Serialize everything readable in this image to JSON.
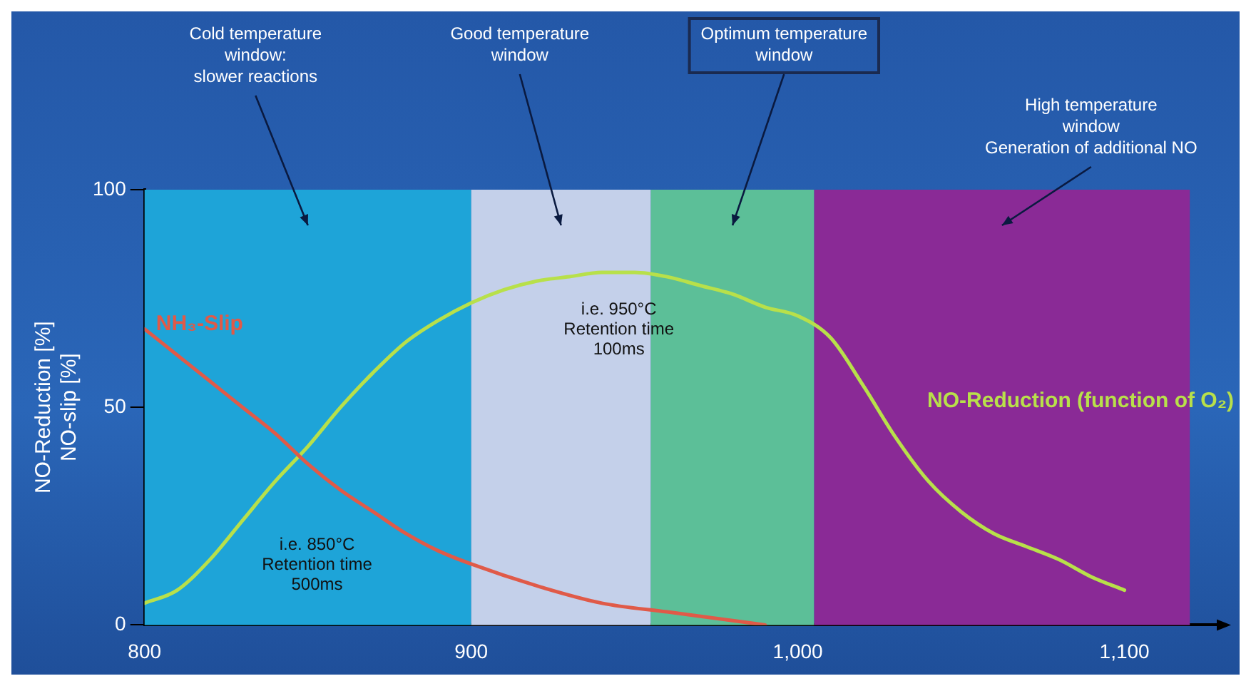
{
  "chart_data": {
    "type": "line",
    "ylabel": "NO-Reduction [%]\nNO-slip [%]",
    "xlim": [
      800,
      1130
    ],
    "xticks": [
      800,
      900,
      {
        "value": 1000,
        "label": "1,000"
      },
      {
        "value": 1100,
        "label": "1,100"
      }
    ],
    "ylim": [
      0,
      100
    ],
    "yticks": [
      0,
      50,
      100
    ],
    "grid": false,
    "legend": false,
    "marker": "none",
    "line_style": "solid",
    "series": [
      {
        "name": "NH₃-Slip",
        "color": "#e05a48",
        "x": [
          800,
          810,
          820,
          830,
          840,
          850,
          860,
          870,
          880,
          890,
          900,
          920,
          940,
          960,
          980,
          990
        ],
        "values": [
          68,
          62,
          56,
          50,
          44,
          37,
          31,
          26,
          21,
          17,
          14,
          9,
          5,
          3,
          1,
          0
        ]
      },
      {
        "name": "NO-Reduction (function of O₂)",
        "color": "#b8e04a",
        "x": [
          800,
          810,
          820,
          830,
          840,
          850,
          860,
          870,
          880,
          890,
          900,
          910,
          920,
          930,
          940,
          950,
          960,
          970,
          980,
          990,
          1000,
          1010,
          1020,
          1030,
          1040,
          1050,
          1060,
          1070,
          1080,
          1090,
          1100
        ],
        "values": [
          5,
          8,
          15,
          24,
          33,
          41,
          50,
          58,
          65,
          70,
          74,
          77,
          79,
          80,
          81,
          81,
          80,
          78,
          76,
          73,
          71,
          66,
          55,
          43,
          33,
          26,
          21,
          18,
          15,
          11,
          8
        ]
      }
    ],
    "bands": [
      {
        "axis": "x",
        "from": 800,
        "to": 900,
        "label": "Cold temperature\nwindow:\nslower reactions",
        "color": "#1ea4d8"
      },
      {
        "axis": "x",
        "from": 900,
        "to": 955,
        "label": "Good temperature\nwindow",
        "color": "#c4d0ea"
      },
      {
        "axis": "x",
        "from": 955,
        "to": 1005,
        "label": "Optimum temperature\nwindow",
        "color": "#5cbf98"
      },
      {
        "axis": "x",
        "from": 1005,
        "to": 1120,
        "label": "High temperature\nwindow\nGeneration of additional NO",
        "color": "#8a2a96"
      }
    ],
    "annotations": [
      "i.e. 850°C\nRetention time\n500ms",
      "i.e. 950°C\nRetention time\n100ms"
    ]
  }
}
